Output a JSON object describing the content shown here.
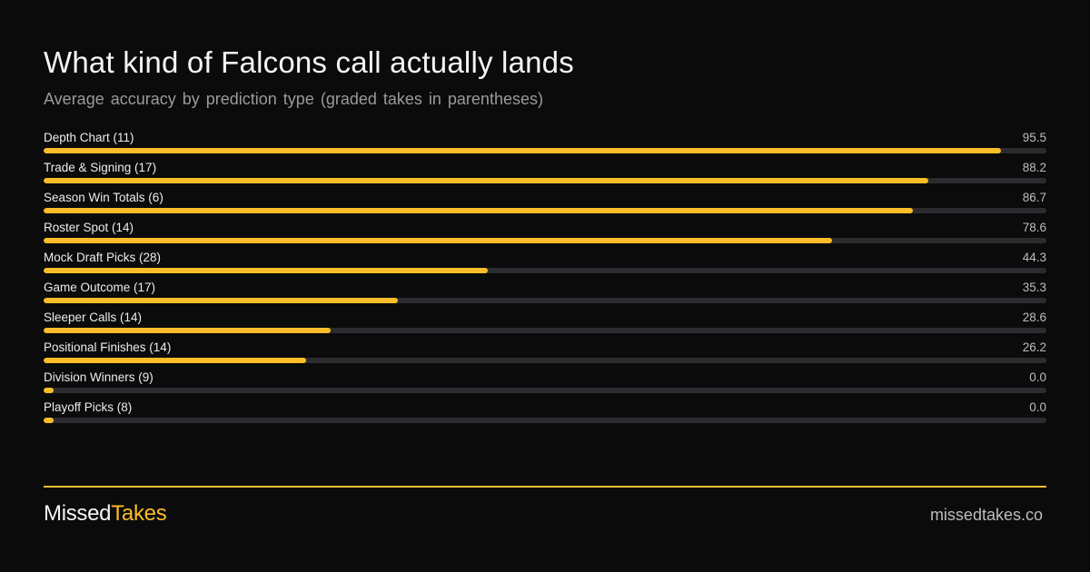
{
  "header": {
    "title": "What kind of Falcons call actually lands",
    "subtitle": "Average accuracy by prediction type (graded takes in parentheses)"
  },
  "colors": {
    "background": "#0b0b0b",
    "bar": "#fbbd29",
    "track": "#2c2c30",
    "accent": "#f1bd3a"
  },
  "chart_data": {
    "type": "bar",
    "orientation": "horizontal",
    "title": "What kind of Falcons call actually lands",
    "subtitle": "Average accuracy by prediction type (graded takes in parentheses)",
    "xlim": [
      0,
      100
    ],
    "grid": false,
    "categories": [
      "Depth Chart (11)",
      "Trade & Signing (17)",
      "Season Win Totals (6)",
      "Roster Spot (14)",
      "Mock Draft Picks (28)",
      "Game Outcome (17)",
      "Sleeper Calls (14)",
      "Positional Finishes (14)",
      "Division Winners (9)",
      "Playoff Picks (8)"
    ],
    "values": [
      95.5,
      88.2,
      86.7,
      78.6,
      44.3,
      35.3,
      28.6,
      26.2,
      0.0,
      0.0
    ],
    "value_labels": [
      "95.5",
      "88.2",
      "86.7",
      "78.6",
      "44.3",
      "35.3",
      "28.6",
      "26.2",
      "0.0",
      "0.0"
    ]
  },
  "footer": {
    "brand_part1": "Missed",
    "brand_part2": "Takes",
    "site": "missedtakes.co"
  }
}
